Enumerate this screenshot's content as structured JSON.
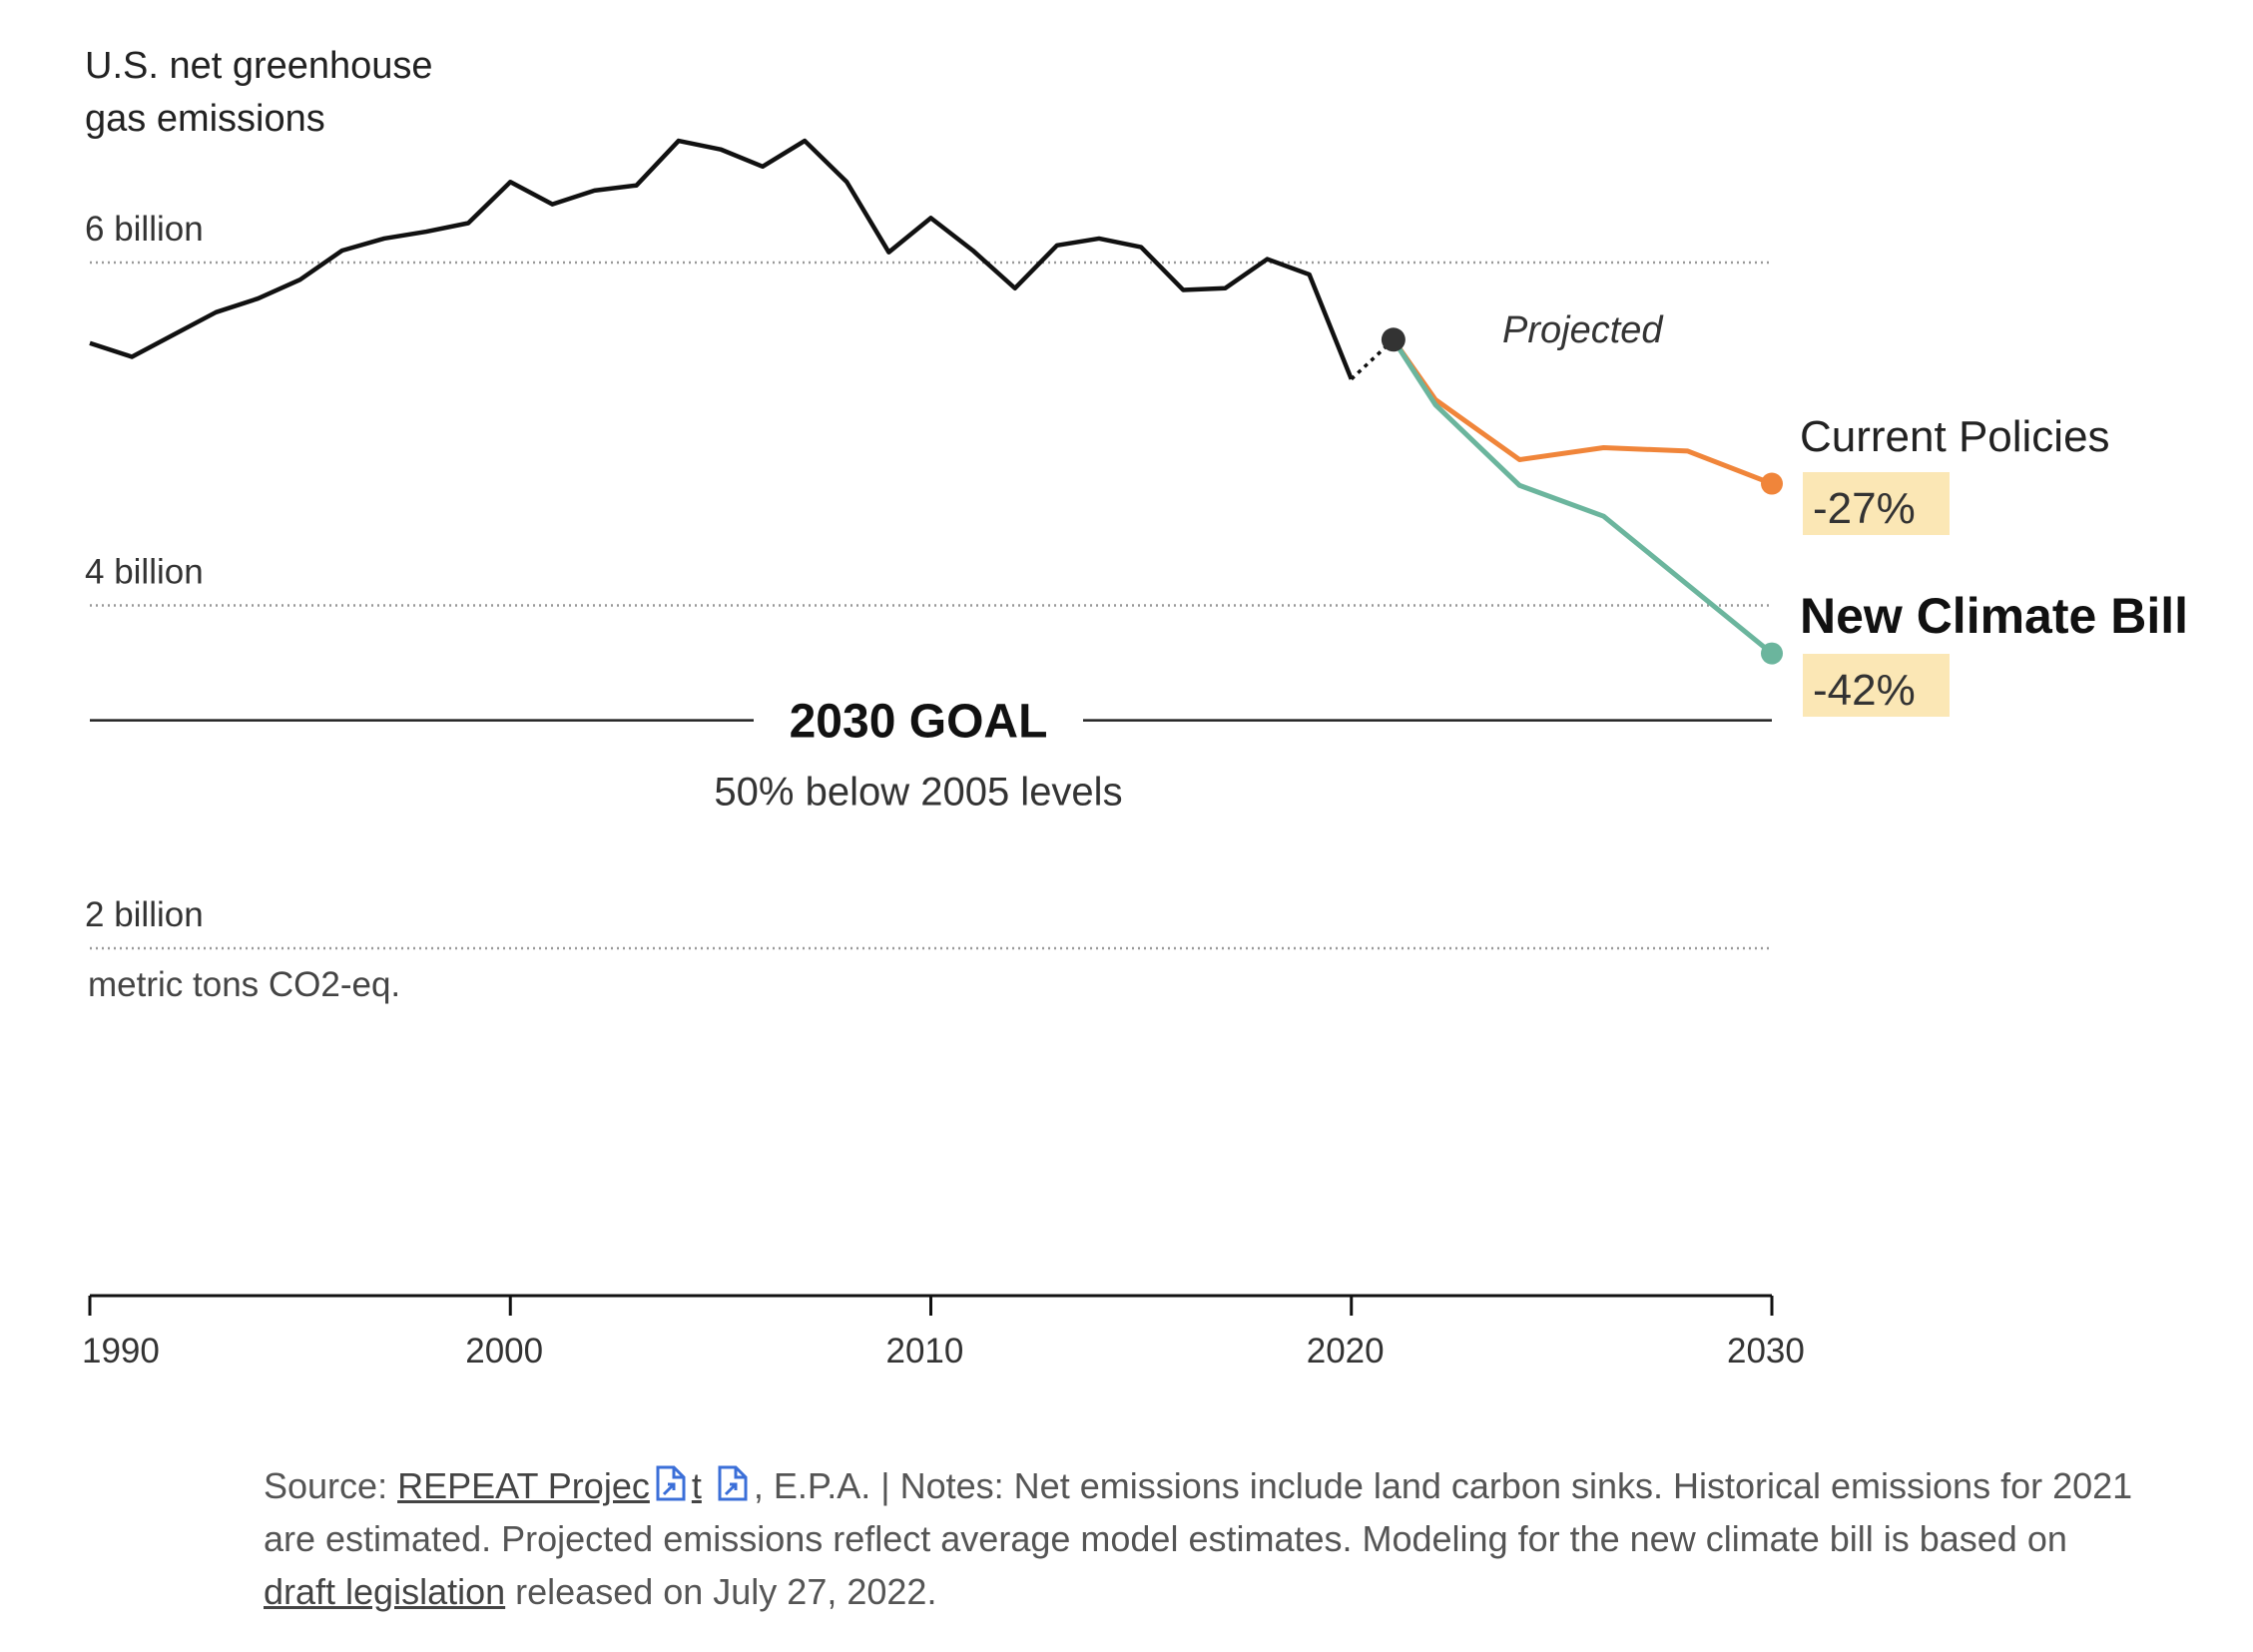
{
  "chart_data": {
    "type": "line",
    "title_lines": [
      "U.S. net greenhouse",
      "gas emissions"
    ],
    "y_unit_label": "metric tons CO2-eq.",
    "ylim": [
      0,
      7.2
    ],
    "xlim": [
      1990,
      2030
    ],
    "y_ticks": [
      {
        "value": 6,
        "label": "6 billion"
      },
      {
        "value": 4,
        "label": "4 billion"
      },
      {
        "value": 2,
        "label": "2 billion"
      }
    ],
    "x_ticks": [
      {
        "value": 1990,
        "label": "1990"
      },
      {
        "value": 2000,
        "label": "2000"
      },
      {
        "value": 2010,
        "label": "2010"
      },
      {
        "value": 2020,
        "label": "2020"
      },
      {
        "value": 2030,
        "label": "2030"
      }
    ],
    "grid": "dotted horizontal",
    "historical": {
      "x": [
        1990,
        1991,
        1992,
        1993,
        1994,
        1995,
        1996,
        1997,
        1998,
        1999,
        2000,
        2001,
        2002,
        2003,
        2004,
        2005,
        2006,
        2007,
        2008,
        2009,
        2010,
        2011,
        2012,
        2013,
        2014,
        2015,
        2016,
        2017,
        2018,
        2019,
        2020
      ],
      "y": [
        5.53,
        5.45,
        5.58,
        5.71,
        5.79,
        5.9,
        6.07,
        6.14,
        6.18,
        6.23,
        6.47,
        6.34,
        6.42,
        6.45,
        6.71,
        6.66,
        6.56,
        6.71,
        6.47,
        6.06,
        6.26,
        6.07,
        5.85,
        6.1,
        6.14,
        6.09,
        5.84,
        5.85,
        6.02,
        5.93,
        5.32
      ],
      "color": "#111111"
    },
    "estimate_2021": {
      "x": 2021,
      "y": 5.55,
      "color": "#333333"
    },
    "projection_label": "Projected",
    "series": [
      {
        "name": "Current Policies",
        "change_label": "-27%",
        "color": "#f0853a",
        "x": [
          2021,
          2022,
          2024,
          2026,
          2028,
          2030
        ],
        "y": [
          5.55,
          5.2,
          4.85,
          4.92,
          4.9,
          4.71
        ]
      },
      {
        "name": "New Climate Bill",
        "change_label": "-42%",
        "color": "#6bb59d",
        "x": [
          2021,
          2022,
          2024,
          2026,
          2028,
          2030
        ],
        "y": [
          5.55,
          5.17,
          4.7,
          4.52,
          4.12,
          3.72
        ]
      }
    ],
    "goal": {
      "title": "2030 GOAL",
      "subtitle": "50% below 2005 levels",
      "value": 3.33
    },
    "label_highlight_color": "#fbe7b5"
  },
  "source_note": {
    "prefix": "Source: ",
    "link1_text": "REPEAT Projec",
    "link1_tail": "t",
    "mid": ", E.P.A. | Notes: Net emissions include land carbon sinks. Historical emissions for 2021 are estimated. Projected emissions reflect average model estimates. Modeling for the new climate bill is based on ",
    "link2_text": "draft legislation",
    "suffix": " released on July 27, 2022.",
    "icon": "external-document-icon"
  }
}
